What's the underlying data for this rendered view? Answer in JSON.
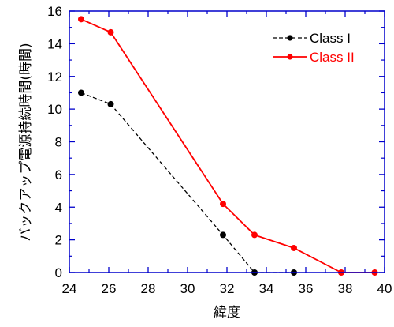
{
  "chart_data": {
    "type": "line",
    "xlabel": "緯度",
    "ylabel": "バックアップ電源持続時間(時間)",
    "xlim": [
      24,
      40
    ],
    "ylim": [
      0,
      16
    ],
    "xticks": [
      24,
      26,
      28,
      30,
      32,
      34,
      36,
      38,
      40
    ],
    "yticks": [
      0,
      2,
      4,
      6,
      8,
      10,
      12,
      14,
      16
    ],
    "grid": false,
    "legend_position": "top-right",
    "frame_color": "#0000cc",
    "series": [
      {
        "name": "Class I",
        "color": "#000000",
        "line_style": "dashed",
        "x": [
          24.6,
          26.1,
          31.8,
          33.4,
          35.4
        ],
        "y": [
          11.0,
          10.3,
          2.3,
          0,
          0
        ]
      },
      {
        "name": "Class II",
        "color": "#ff0000",
        "line_style": "solid",
        "x": [
          24.6,
          26.1,
          31.8,
          33.4,
          35.4,
          37.8,
          39.5
        ],
        "y": [
          15.5,
          14.7,
          4.2,
          2.3,
          1.5,
          0,
          0
        ]
      }
    ]
  }
}
